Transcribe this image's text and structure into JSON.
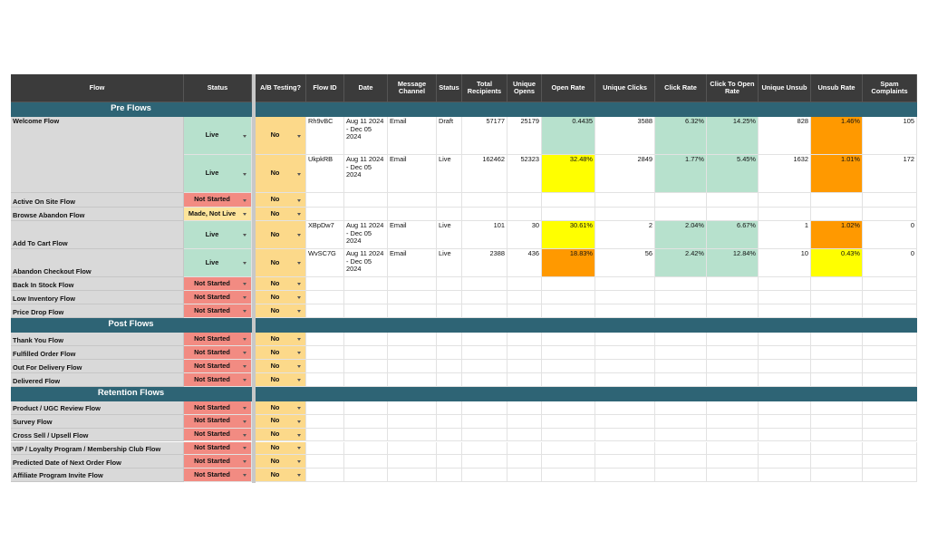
{
  "header": [
    "Flow",
    "Status",
    "A/B Testing?",
    "Flow ID",
    "Date",
    "Message Channel",
    "Status",
    "Total Recipients",
    "Unique Opens",
    "Open Rate",
    "Unique Clicks",
    "Click Rate",
    "Click To Open Rate",
    "Unique Unsub",
    "Unsub Rate",
    "Spam Complaints"
  ],
  "ab_color": "#fcd98a",
  "sections": [
    {
      "title": "Pre Flows",
      "rows": [
        {
          "flow": "Welcome Flow",
          "status": "Live",
          "status_color": "#b7e1cd",
          "ab": "No",
          "metrics": [
            "Rh9vBC",
            "Aug 11 2024 - Dec 05 2024",
            "Email",
            "Draft",
            57177,
            25179,
            0.4435,
            3588,
            "6.32%",
            "14.25%",
            828,
            "1.46%",
            105
          ],
          "fills": {
            "6": "#b7e1cd",
            "8": "#b7e1cd",
            "9": "#b7e1cd",
            "11": "#ff9900"
          }
        },
        {
          "status": "Live",
          "status_color": "#b7e1cd",
          "ab": "No",
          "metrics": [
            "UkpkRB",
            "Aug 11 2024 - Dec 05 2024",
            "Email",
            "Live",
            162462,
            52323,
            "32.48%",
            2849,
            "1.77%",
            "5.45%",
            1632,
            "1.01%",
            172
          ],
          "fills": {
            "6": "#ffff00",
            "8": "#b7e1cd",
            "9": "#b7e1cd",
            "11": "#ff9900"
          }
        },
        {
          "flow": "Active On Site Flow",
          "status": "Not Started",
          "status_color": "#f28b82",
          "ab": "No"
        },
        {
          "flow": "Browse Abandon Flow",
          "status": "Made, Not Live",
          "status_color": "#fde49b",
          "ab": "No"
        },
        {
          "flow": "Add To Cart Flow",
          "status": "Live",
          "status_color": "#b7e1cd",
          "ab": "No",
          "metrics": [
            "XBpDw7",
            "Aug 11 2024 - Dec 05 2024",
            "Email",
            "Live",
            101,
            30,
            "30.61%",
            2,
            "2.04%",
            "6.67%",
            1,
            "1.02%",
            0
          ],
          "fills": {
            "6": "#ffff00",
            "8": "#b7e1cd",
            "9": "#b7e1cd",
            "11": "#ff9900"
          }
        },
        {
          "flow": "Abandon Checkout Flow",
          "status": "Live",
          "status_color": "#b7e1cd",
          "ab": "No",
          "metrics": [
            "WvSC7G",
            "Aug 11 2024 - Dec 05 2024",
            "Email",
            "Live",
            2388,
            436,
            "18.83%",
            56,
            "2.42%",
            "12.84%",
            10,
            "0.43%",
            0
          ],
          "fills": {
            "6": "#ff9900",
            "8": "#b7e1cd",
            "9": "#b7e1cd",
            "11": "#ffff00"
          }
        },
        {
          "flow": "Back In Stock Flow",
          "status": "Not Started",
          "status_color": "#f28b82",
          "ab": "No"
        },
        {
          "flow": "Low Inventory Flow",
          "status": "Not Started",
          "status_color": "#f28b82",
          "ab": "No"
        },
        {
          "flow": "Price Drop Flow",
          "status": "Not Started",
          "status_color": "#f28b82",
          "ab": "No"
        }
      ]
    },
    {
      "title": "Post Flows",
      "rows": [
        {
          "flow": "Thank You Flow",
          "status": "Not Started",
          "status_color": "#f28b82",
          "ab": "No"
        },
        {
          "flow": "Fulfilled Order Flow",
          "status": "Not Started",
          "status_color": "#f28b82",
          "ab": "No"
        },
        {
          "flow": "Out For Delivery Flow",
          "status": "Not Started",
          "status_color": "#f28b82",
          "ab": "No"
        },
        {
          "flow": "Delivered Flow",
          "status": "Not Started",
          "status_color": "#f28b82",
          "ab": "No"
        }
      ]
    },
    {
      "title": "Retention Flows",
      "rows": [
        {
          "flow": "Product / UGC Review Flow",
          "status": "Not Started",
          "status_color": "#f28b82",
          "ab": "No"
        },
        {
          "flow": "Survey Flow",
          "status": "Not Started",
          "status_color": "#f28b82",
          "ab": "No"
        },
        {
          "flow": "Cross Sell / Upsell Flow",
          "status": "Not Started",
          "status_color": "#f28b82",
          "ab": "No"
        },
        {
          "flow": "VIP / Loyalty Program / Membership Club Flow",
          "status": "Not Started",
          "status_color": "#f28b82",
          "ab": "No"
        },
        {
          "flow": "Predicted Date of Next Order Flow",
          "status": "Not Started",
          "status_color": "#f28b82",
          "ab": "No"
        },
        {
          "flow": "Affiliate Program Invite Flow",
          "status": "Not Started",
          "status_color": "#f28b82",
          "ab": "No"
        }
      ]
    }
  ]
}
